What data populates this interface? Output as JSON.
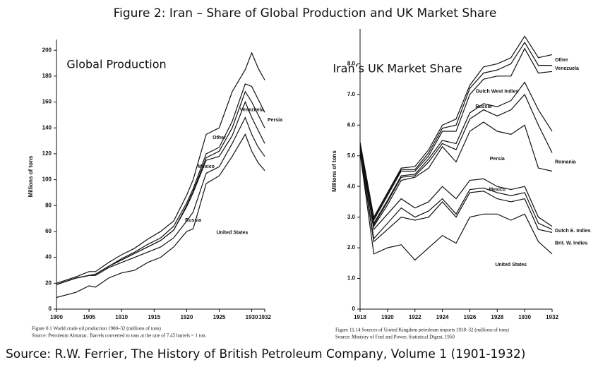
{
  "title": "Figure 2: Iran – Share of Global Production and UK Market Share",
  "source": "Source: R.W. Ferrier, The History of British Petroleum Company, Volume 1 (1901-1932)",
  "chart_data": [
    {
      "type": "stacked-line",
      "inner_title": "Global Production",
      "ylabel": "Millions of tons",
      "caption": "Figure 0.1 World crude oil production 1900–32 (millions of tons)",
      "note": "Source: Petroleum Almanac. Barrels converted to tons at the rate of 7.45 barrels = 1 ton.",
      "x": [
        1900,
        1903,
        1905,
        1906,
        1908,
        1910,
        1912,
        1914,
        1916,
        1918,
        1920,
        1921,
        1923,
        1925,
        1927,
        1929,
        1930,
        1931,
        1932
      ],
      "xlim": [
        1900,
        1932
      ],
      "xticks": [
        1900,
        1905,
        1910,
        1915,
        1920,
        1925,
        1930,
        1932
      ],
      "ylim": [
        0,
        205
      ],
      "yticks": [
        0,
        20,
        40,
        60,
        80,
        100,
        120,
        140,
        160,
        180,
        200
      ],
      "series": [
        {
          "name": "United States",
          "color": "#111",
          "values": [
            9,
            13,
            18,
            17,
            24,
            28,
            30,
            36,
            40,
            48,
            60,
            62,
            97,
            103,
            118,
            135,
            122,
            113,
            107
          ]
        },
        {
          "name": "Russia",
          "color": "#111",
          "values": [
            10,
            11,
            8,
            9,
            8,
            8,
            10,
            8,
            8,
            7,
            8,
            13,
            8,
            7,
            10,
            13,
            13,
            12,
            11
          ]
        },
        {
          "name": "Mexico",
          "color": "#111",
          "values": [
            0,
            0,
            0,
            1,
            1,
            2,
            3,
            4,
            5,
            6,
            11,
            15,
            10,
            8,
            6,
            12,
            13,
            13,
            10
          ]
        },
        {
          "name": "Venezuela",
          "color": "#111",
          "values": [
            0,
            0,
            0,
            0,
            0,
            0,
            0,
            0,
            0,
            0,
            1,
            1,
            2,
            4,
            6,
            8,
            12,
            12,
            12
          ]
        },
        {
          "name": "Persia",
          "color": "#111",
          "values": [
            0,
            0,
            0,
            0,
            0,
            1,
            1,
            2,
            2,
            3,
            2,
            2,
            3,
            3,
            5,
            6,
            12,
            12,
            12
          ]
        },
        {
          "name": "Other",
          "color": "#111",
          "values": [
            1,
            1,
            3,
            2,
            3,
            3,
            3,
            4,
            5,
            4,
            6,
            7,
            15,
            15,
            23,
            11,
            26,
            24,
            25
          ]
        }
      ]
    },
    {
      "type": "stacked-line",
      "inner_title": "Iran’s UK Market Share",
      "ylabel": "Millions of tons",
      "caption": "Figure 11.14 Sources of United Kingdom petroleum imports 1918–32 (millions of tons)",
      "note": "Source: Ministry of Fuel and Power, Statistical Digest, 1950",
      "x": [
        1918,
        1919,
        1920,
        1921,
        1922,
        1923,
        1924,
        1925,
        1926,
        1927,
        1928,
        1929,
        1930,
        1931,
        1932
      ],
      "xlim": [
        1918,
        1932
      ],
      "xticks": [
        1918,
        1920,
        1922,
        1924,
        1926,
        1928,
        1930,
        1932
      ],
      "ylim": [
        0,
        9
      ],
      "yticks": [
        0,
        {
          "value": 1,
          "label": "1.0"
        },
        {
          "value": 2,
          "label": "2.0"
        },
        {
          "value": 3,
          "label": "3.0"
        },
        {
          "value": 4,
          "label": "4.0"
        },
        {
          "value": 5,
          "label": "5.0"
        },
        {
          "value": 6,
          "label": "6.0"
        },
        {
          "value": 7,
          "label": "7.0"
        },
        {
          "value": 8,
          "label": "8.0"
        }
      ],
      "series": [
        {
          "name": "United States",
          "color": "#111",
          "values": [
            5.1,
            1.8,
            2.0,
            2.1,
            1.6,
            2.0,
            2.4,
            2.15,
            3.0,
            3.1,
            3.1,
            2.9,
            3.1,
            2.2,
            1.8
          ]
        },
        {
          "name": "Brit. W. Indies",
          "color": "#111",
          "values": [
            0.05,
            0.4,
            0.6,
            0.9,
            1.3,
            1.0,
            1.1,
            0.85,
            0.8,
            0.75,
            0.5,
            0.6,
            0.5,
            0.4,
            0.7
          ]
        },
        {
          "name": "Dutch E. Indies",
          "color": "#111",
          "values": [
            0.05,
            0.1,
            0.2,
            0.3,
            0.1,
            0.2,
            0.1,
            0.1,
            0.1,
            0.1,
            0.2,
            0.2,
            0.2,
            0.2,
            0.1
          ]
        },
        {
          "name": "Mexico",
          "color": "#111",
          "values": [
            0.05,
            0.3,
            0.3,
            0.3,
            0.3,
            0.3,
            0.4,
            0.5,
            0.3,
            0.3,
            0.2,
            0.2,
            0.2,
            0.2,
            0.1
          ]
        },
        {
          "name": "Persia",
          "color": "#111",
          "values": [
            0.05,
            0.1,
            0.3,
            0.6,
            1.0,
            1.1,
            1.3,
            1.2,
            1.6,
            1.85,
            1.8,
            1.8,
            2.0,
            1.6,
            1.8
          ]
        },
        {
          "name": "Romania",
          "color": "#111",
          "values": [
            0.05,
            0.05,
            0.1,
            0.1,
            0.05,
            0.2,
            0.1,
            0.4,
            0.4,
            0.4,
            0.5,
            0.8,
            1.0,
            1.4,
            0.6
          ]
        },
        {
          "name": "Russia",
          "color": "#111",
          "values": [
            0,
            0.05,
            0.05,
            0.05,
            0.05,
            0.1,
            0.1,
            0.2,
            0.2,
            0.2,
            0.3,
            0.3,
            0.4,
            0.5,
            0.7
          ]
        },
        {
          "name": "Dutch West Indies",
          "color": "#111",
          "values": [
            0.05,
            0.1,
            0.15,
            0.15,
            0.1,
            0.1,
            0.3,
            0.4,
            0.6,
            0.8,
            1.0,
            0.8,
            1.1,
            1.2,
            1.95
          ]
        },
        {
          "name": "Venezuela",
          "color": "#111",
          "values": [
            0,
            0.05,
            0.05,
            0.05,
            0.05,
            0.1,
            0.1,
            0.2,
            0.2,
            0.2,
            0.2,
            0.4,
            0.2,
            0.25,
            0.2
          ]
        },
        {
          "name": "Other",
          "color": "#111",
          "values": [
            0.05,
            0.05,
            0.05,
            0.05,
            0.1,
            0.1,
            0.1,
            0.2,
            0.1,
            0.2,
            0.2,
            0.2,
            0.2,
            0.25,
            0.35
          ]
        }
      ]
    }
  ]
}
